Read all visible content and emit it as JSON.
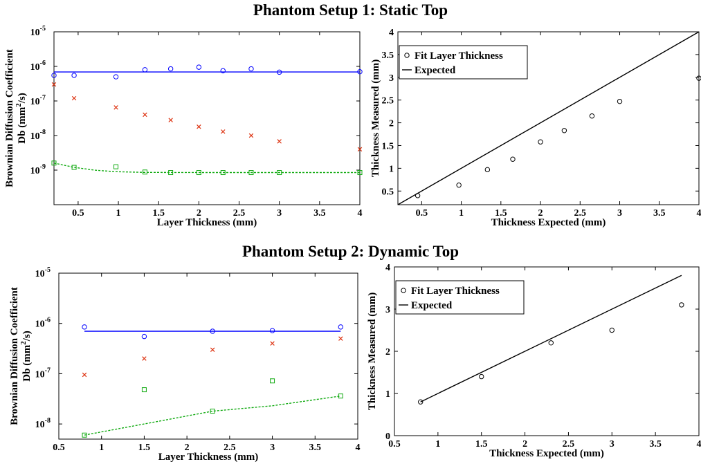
{
  "titles": {
    "setup1": "Phantom Setup 1: Static Top",
    "setup2": "Phantom Setup 2: Dynamic Top"
  },
  "colors": {
    "blue": "#0000ff",
    "red": "#dd3311",
    "green": "#11aa11",
    "black": "#000000"
  },
  "chart_data": [
    {
      "id": "p1_db",
      "type": "scatter",
      "xlabel": "Layer Thickness (mm)",
      "ylabel_line1": "Brownian Diffusion Coefficient",
      "ylabel_line2": "Db (mm",
      "ylabel_sup": "2",
      "ylabel_end": "/s)",
      "xscale": "linear",
      "yscale": "log",
      "xlim": [
        0.2,
        4
      ],
      "ylim": [
        1e-10,
        1e-05
      ],
      "xticks": [
        0.5,
        1,
        1.5,
        2,
        2.5,
        3,
        3.5,
        4
      ],
      "xtick_labels": [
        "0.5",
        "1",
        "1.5",
        "2",
        "2.5",
        "3",
        "3.5",
        "4"
      ],
      "yticks": [
        -9,
        -8,
        -7,
        -6,
        -5
      ],
      "ytick_base": "10",
      "series": [
        {
          "marker": "circle",
          "color": "blue",
          "x": [
            0.2,
            0.45,
            0.97,
            1.33,
            1.65,
            2.0,
            2.3,
            2.65,
            3.0,
            4.0
          ],
          "y": [
            5.5e-07,
            5.5e-07,
            5e-07,
            8e-07,
            8.5e-07,
            9.5e-07,
            7.5e-07,
            8.5e-07,
            6.8e-07,
            7e-07
          ]
        },
        {
          "marker": "line",
          "color": "blue",
          "x": [
            0.2,
            4.0
          ],
          "y": [
            6.9e-07,
            6.9e-07
          ]
        },
        {
          "marker": "x",
          "color": "red",
          "x": [
            0.2,
            0.45,
            0.97,
            1.33,
            1.65,
            2.0,
            2.3,
            2.65,
            3.0,
            4.0
          ],
          "y": [
            3e-07,
            1.2e-07,
            6.5e-08,
            4e-08,
            2.8e-08,
            1.8e-08,
            1.3e-08,
            1e-08,
            6.8e-09,
            4e-09
          ]
        },
        {
          "marker": "square",
          "color": "green",
          "x": [
            0.2,
            0.45,
            0.97,
            1.33,
            1.65,
            2.0,
            2.3,
            2.65,
            3.0,
            4.0
          ],
          "y": [
            1.6e-09,
            1.2e-09,
            1.25e-09,
            8.8e-10,
            8.5e-10,
            8.5e-10,
            8.5e-10,
            8.5e-10,
            8.5e-10,
            8.5e-10
          ]
        },
        {
          "marker": "dashed",
          "color": "green",
          "x": [
            0.2,
            0.45,
            0.7,
            0.97,
            1.33,
            2.0,
            3.0,
            4.0
          ],
          "y": [
            1.6e-09,
            1.2e-09,
            1e-09,
            9e-10,
            8.6e-10,
            8.5e-10,
            8.5e-10,
            8.5e-10
          ]
        }
      ]
    },
    {
      "id": "p1_thk",
      "type": "scatter",
      "xlabel": "Thickness Expected (mm)",
      "ylabel_line1": "Thickness Measured (mm)",
      "xscale": "linear",
      "yscale": "linear",
      "xlim": [
        0.2,
        4
      ],
      "ylim": [
        0.2,
        4
      ],
      "xticks": [
        0.5,
        1,
        1.5,
        2,
        2.5,
        3,
        3.5,
        4
      ],
      "xtick_labels": [
        "0.5",
        "1",
        "1.5",
        "2",
        "2.5",
        "3",
        "3.5",
        "4"
      ],
      "yticks": [
        0.5,
        1,
        1.5,
        2,
        2.5,
        3,
        3.5,
        4
      ],
      "ytick_labels": [
        "0.5",
        "1",
        "1.5",
        "2",
        "2.5",
        "3",
        "3.5",
        "4"
      ],
      "legend": {
        "position": "top-left",
        "entries": [
          "Fit Layer Thickness",
          "Expected"
        ]
      },
      "series": [
        {
          "marker": "circle",
          "color": "black",
          "x": [
            0.45,
            0.97,
            1.33,
            1.65,
            2.0,
            2.3,
            2.65,
            3.0,
            4.0
          ],
          "y": [
            0.4,
            0.63,
            0.97,
            1.2,
            1.58,
            1.83,
            2.15,
            2.47,
            2.98
          ]
        },
        {
          "marker": "line",
          "color": "black",
          "x": [
            0.2,
            4.0
          ],
          "y": [
            0.2,
            4.0
          ]
        }
      ]
    },
    {
      "id": "p2_db",
      "type": "scatter",
      "xlabel": "Layer Thickness (mm)",
      "ylabel_line1": "Brownian Diffusion Coefficient",
      "ylabel_line2": "Db (mm",
      "ylabel_sup": "2",
      "ylabel_end": "/s)",
      "xscale": "linear",
      "yscale": "log",
      "xlim": [
        0.5,
        4
      ],
      "ylim": [
        5e-09,
        1e-05
      ],
      "xticks": [
        0.5,
        1,
        1.5,
        2,
        2.5,
        3,
        3.5,
        4
      ],
      "xtick_labels": [
        "0.5",
        "1",
        "1.5",
        "2",
        "2.5",
        "3",
        "3.5",
        "4"
      ],
      "yticks": [
        -8,
        -7,
        -6,
        -5
      ],
      "ytick_base": "10",
      "series": [
        {
          "marker": "circle",
          "color": "blue",
          "x": [
            0.8,
            1.5,
            2.3,
            3.0,
            3.8
          ],
          "y": [
            8.5e-07,
            5.5e-07,
            7e-07,
            7.2e-07,
            8.5e-07
          ]
        },
        {
          "marker": "line",
          "color": "blue",
          "x": [
            0.8,
            3.8
          ],
          "y": [
            7e-07,
            7e-07
          ]
        },
        {
          "marker": "x",
          "color": "red",
          "x": [
            0.8,
            1.5,
            2.3,
            3.0,
            3.8
          ],
          "y": [
            9.5e-08,
            2e-07,
            3e-07,
            4e-07,
            5e-07
          ]
        },
        {
          "marker": "square",
          "color": "green",
          "x": [
            0.8,
            1.5,
            2.3,
            3.0,
            3.8
          ],
          "y": [
            6e-09,
            4.8e-08,
            1.8e-08,
            7.2e-08,
            3.6e-08
          ]
        },
        {
          "marker": "dashed",
          "color": "green",
          "x": [
            0.8,
            1.5,
            2.3,
            3.0,
            3.8
          ],
          "y": [
            6e-09,
            1e-08,
            1.8e-08,
            2.3e-08,
            3.6e-08
          ]
        }
      ]
    },
    {
      "id": "p2_thk",
      "type": "scatter",
      "xlabel": "Thickness Expected (mm)",
      "ylabel_line1": "Thickness Measured (mm)",
      "xscale": "linear",
      "yscale": "linear",
      "xlim": [
        0.5,
        4
      ],
      "ylim": [
        0,
        4
      ],
      "xticks": [
        0.5,
        1,
        1.5,
        2,
        2.5,
        3,
        3.5,
        4
      ],
      "xtick_labels": [
        "0.5",
        "1",
        "1.5",
        "2",
        "2.5",
        "3",
        "3.5",
        "4"
      ],
      "yticks": [
        0,
        1,
        2,
        3,
        4
      ],
      "ytick_labels": [
        "0",
        "1",
        "2",
        "3",
        "4"
      ],
      "legend": {
        "position": "top-left",
        "entries": [
          "Fit Layer Thickness",
          "Expected"
        ]
      },
      "series": [
        {
          "marker": "circle",
          "color": "black",
          "x": [
            0.8,
            1.5,
            2.3,
            3.0,
            3.8
          ],
          "y": [
            0.8,
            1.4,
            2.2,
            2.5,
            3.1
          ]
        },
        {
          "marker": "line",
          "color": "black",
          "x": [
            0.8,
            3.8
          ],
          "y": [
            0.8,
            3.8
          ]
        }
      ]
    }
  ]
}
